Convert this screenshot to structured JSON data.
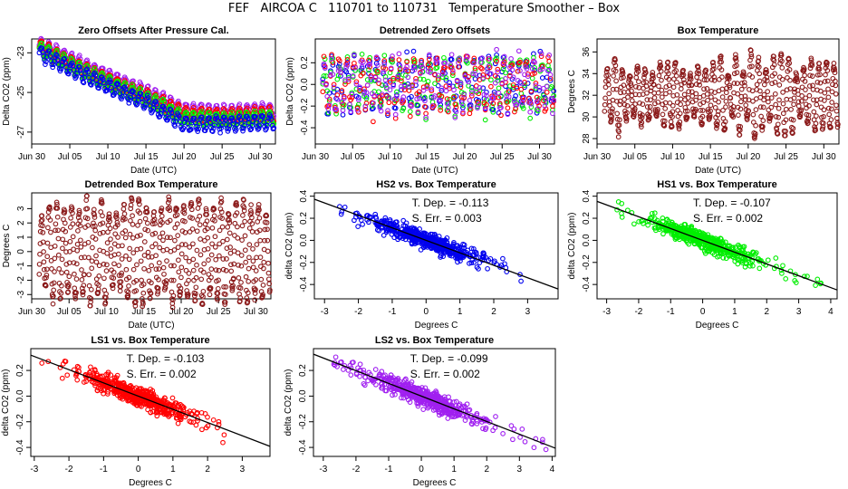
{
  "page": {
    "title": "FEF   AIRCOA C   110701 to 110731   Temperature Smoother – Box"
  },
  "colors": {
    "hs1": "#00ee00",
    "hs2": "#0000ee",
    "ls1": "#ff0000",
    "ls2": "#a020f0",
    "box": "#8b1a1a",
    "fit": "#000000"
  },
  "chart_data": [
    {
      "id": "zero-offsets",
      "type": "scatter",
      "title": "Zero Offsets After Pressure Cal.",
      "xlabel": "Date (UTC)",
      "ylabel": "Delta CO2 (ppm)",
      "xticks": [
        "Jun 30",
        "Jul 05",
        "Jul 10",
        "Jul 15",
        "Jul 20",
        "Jul 25",
        "Jul 30"
      ],
      "yticks": [
        "-23",
        "-25",
        "-27"
      ],
      "xlim": [
        "2011-06-30",
        "2011-08-01"
      ],
      "ylim": [
        -27.6,
        -22.3
      ],
      "series": [
        {
          "key": "ls2",
          "points": [
            [
              "2011-07-01",
              -22.6
            ],
            [
              "2011-07-05",
              -23.3
            ],
            [
              "2011-07-10",
              -24.2
            ],
            [
              "2011-07-15",
              -25.0
            ],
            [
              "2011-07-20",
              -25.9
            ],
            [
              "2011-07-25",
              -26.0
            ],
            [
              "2011-07-31",
              -25.9
            ]
          ]
        },
        {
          "key": "ls1",
          "points": [
            [
              "2011-07-01",
              -22.7
            ],
            [
              "2011-07-05",
              -23.5
            ],
            [
              "2011-07-10",
              -24.4
            ],
            [
              "2011-07-15",
              -25.2
            ],
            [
              "2011-07-20",
              -26.1
            ],
            [
              "2011-07-25",
              -26.2
            ],
            [
              "2011-07-31",
              -26.1
            ]
          ]
        },
        {
          "key": "hs1",
          "points": [
            [
              "2011-07-01",
              -22.8
            ],
            [
              "2011-07-05",
              -23.6
            ],
            [
              "2011-07-10",
              -24.5
            ],
            [
              "2011-07-15",
              -25.3
            ],
            [
              "2011-07-20",
              -26.3
            ],
            [
              "2011-07-25",
              -26.4
            ],
            [
              "2011-07-31",
              -26.3
            ]
          ]
        },
        {
          "key": "hs2",
          "points": [
            [
              "2011-07-01",
              -23.0
            ],
            [
              "2011-07-05",
              -23.8
            ],
            [
              "2011-07-10",
              -24.7
            ],
            [
              "2011-07-15",
              -25.5
            ],
            [
              "2011-07-20",
              -26.6
            ],
            [
              "2011-07-25",
              -26.6
            ],
            [
              "2011-07-31",
              -26.5
            ]
          ]
        }
      ]
    },
    {
      "id": "detrended-zero-offsets",
      "type": "scatter",
      "title": "Detrended Zero Offsets",
      "xlabel": "Date (UTC)",
      "ylabel": "Delta CO2 (ppm)",
      "xticks": [
        "Jun 30",
        "Jul 05",
        "Jul 10",
        "Jul 15",
        "Jul 20",
        "Jul 25",
        "Jul 30"
      ],
      "yticks": [
        "-0.4",
        "-0.2",
        "0.0",
        "0.2"
      ],
      "xlim": [
        "2011-06-30",
        "2011-08-01"
      ],
      "ylim": [
        -0.55,
        0.42
      ],
      "range": [
        -0.5,
        0.35
      ]
    },
    {
      "id": "box-temperature",
      "type": "scatter",
      "title": "Box Temperature",
      "xlabel": "Date (UTC)",
      "ylabel": "Degrees C",
      "xticks": [
        "Jun 30",
        "Jul 05",
        "Jul 10",
        "Jul 15",
        "Jul 20",
        "Jul 25",
        "Jul 30"
      ],
      "yticks": [
        "28",
        "30",
        "32",
        "34",
        "36"
      ],
      "xlim": [
        "2011-06-30",
        "2011-08-01"
      ],
      "ylim": [
        27.5,
        37.2
      ],
      "mean": 32,
      "amplitude_range": [
        1.8,
        4.5
      ]
    },
    {
      "id": "detrended-box-temperature",
      "type": "scatter",
      "title": "Detrended Box Temperature",
      "xlabel": "Date (UTC)",
      "ylabel": "Degrees C",
      "xticks": [
        "Jun 30",
        "Jul 05",
        "Jul 10",
        "Jul 15",
        "Jul 20",
        "Jul 25",
        "Jul 30"
      ],
      "yticks": [
        "-3",
        "-2",
        "-1",
        "0",
        "1",
        "2",
        "3"
      ],
      "xlim": [
        "2011-06-30",
        "2011-08-01"
      ],
      "ylim": [
        -3.3,
        4.1
      ],
      "amplitude_range": [
        2.5,
        3.8
      ]
    },
    {
      "id": "hs2-vs-box",
      "type": "scatter",
      "key": "hs2",
      "title": "HS2 vs. Box Temperature",
      "xlabel": "Degrees C",
      "ylabel": "delta CO2 (ppm)",
      "xticks": [
        "-3",
        "-2",
        "-1",
        "0",
        "1",
        "2",
        "3"
      ],
      "yticks": [
        "-0.4",
        "-0.2",
        "0.0",
        "0.2",
        "0.4"
      ],
      "xlim": [
        -3.3,
        3.9
      ],
      "ylim": [
        -0.53,
        0.43
      ],
      "fit": {
        "slope": -0.113,
        "intercept": 0.0
      },
      "annotation": [
        "T. Dep. =  -0.113",
        "S. Err. =  0.003"
      ]
    },
    {
      "id": "hs1-vs-box",
      "type": "scatter",
      "key": "hs1",
      "title": "HS1 vs. Box Temperature",
      "xlabel": "Degrees C",
      "ylabel": "delta CO2 (ppm)",
      "xticks": [
        "-3",
        "-2",
        "-1",
        "0",
        "1",
        "2",
        "3",
        "4"
      ],
      "yticks": [
        "-0.4",
        "-0.2",
        "0.0",
        "0.2",
        "0.4"
      ],
      "xlim": [
        -3.3,
        4.2
      ],
      "ylim": [
        -0.53,
        0.43
      ],
      "fit": {
        "slope": -0.107,
        "intercept": 0.0
      },
      "annotation": [
        "T. Dep. =  -0.107",
        "S. Err. =  0.002"
      ]
    },
    {
      "id": "ls1-vs-box",
      "type": "scatter",
      "key": "ls1",
      "title": "LS1 vs. Box Temperature",
      "xlabel": "Degrees C",
      "ylabel": "delta CO2 (ppm)",
      "xticks": [
        "-3",
        "-2",
        "-1",
        "0",
        "1",
        "2",
        "3"
      ],
      "yticks": [
        "-0.4",
        "-0.2",
        "0.0",
        "0.2"
      ],
      "xlim": [
        -3.1,
        3.8
      ],
      "ylim": [
        -0.47,
        0.37
      ],
      "fit": {
        "slope": -0.103,
        "intercept": 0.0
      },
      "annotation": [
        "T. Dep. =  -0.103",
        "S. Err. =  0.002"
      ]
    },
    {
      "id": "ls2-vs-box",
      "type": "scatter",
      "key": "ls2",
      "title": "LS2 vs. Box Temperature",
      "xlabel": "Degrees C",
      "ylabel": "delta CO2 (ppm)",
      "xticks": [
        "-3",
        "-2",
        "-1",
        "0",
        "1",
        "2",
        "3",
        "4"
      ],
      "yticks": [
        "-0.4",
        "-0.2",
        "0.0",
        "0.2"
      ],
      "xlim": [
        -3.3,
        4.1
      ],
      "ylim": [
        -0.47,
        0.37
      ],
      "fit": {
        "slope": -0.099,
        "intercept": 0.0
      },
      "annotation": [
        "T. Dep. =  -0.099",
        "S. Err. =  0.002"
      ]
    }
  ]
}
